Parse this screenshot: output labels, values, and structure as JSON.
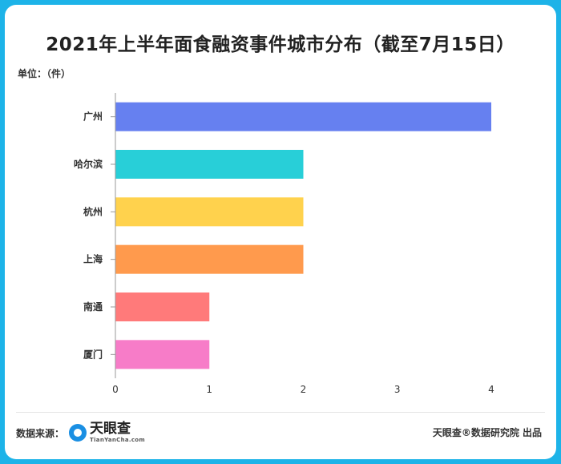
{
  "title": "2021年上半年面食融资事件城市分布（截至7月15日）",
  "unit_label": "单位：（件）",
  "footer": {
    "source_label": "数据来源：",
    "logo_name": "天眼查",
    "logo_sub": "TianYanCha.com",
    "credit": "天眼查®数据研究院 出品"
  },
  "chart_data": {
    "type": "bar",
    "orientation": "horizontal",
    "categories": [
      "广州",
      "哈尔滨",
      "杭州",
      "上海",
      "南通",
      "厦门"
    ],
    "values": [
      4,
      2,
      2,
      2,
      1,
      1
    ],
    "colors": [
      "#6680f0",
      "#28cfd8",
      "#ffd24d",
      "#ff9a4d",
      "#ff7a7a",
      "#f77cc8"
    ],
    "xlim": [
      0,
      4
    ],
    "xticks": [
      0,
      1,
      2,
      3,
      4
    ],
    "grid": false
  }
}
